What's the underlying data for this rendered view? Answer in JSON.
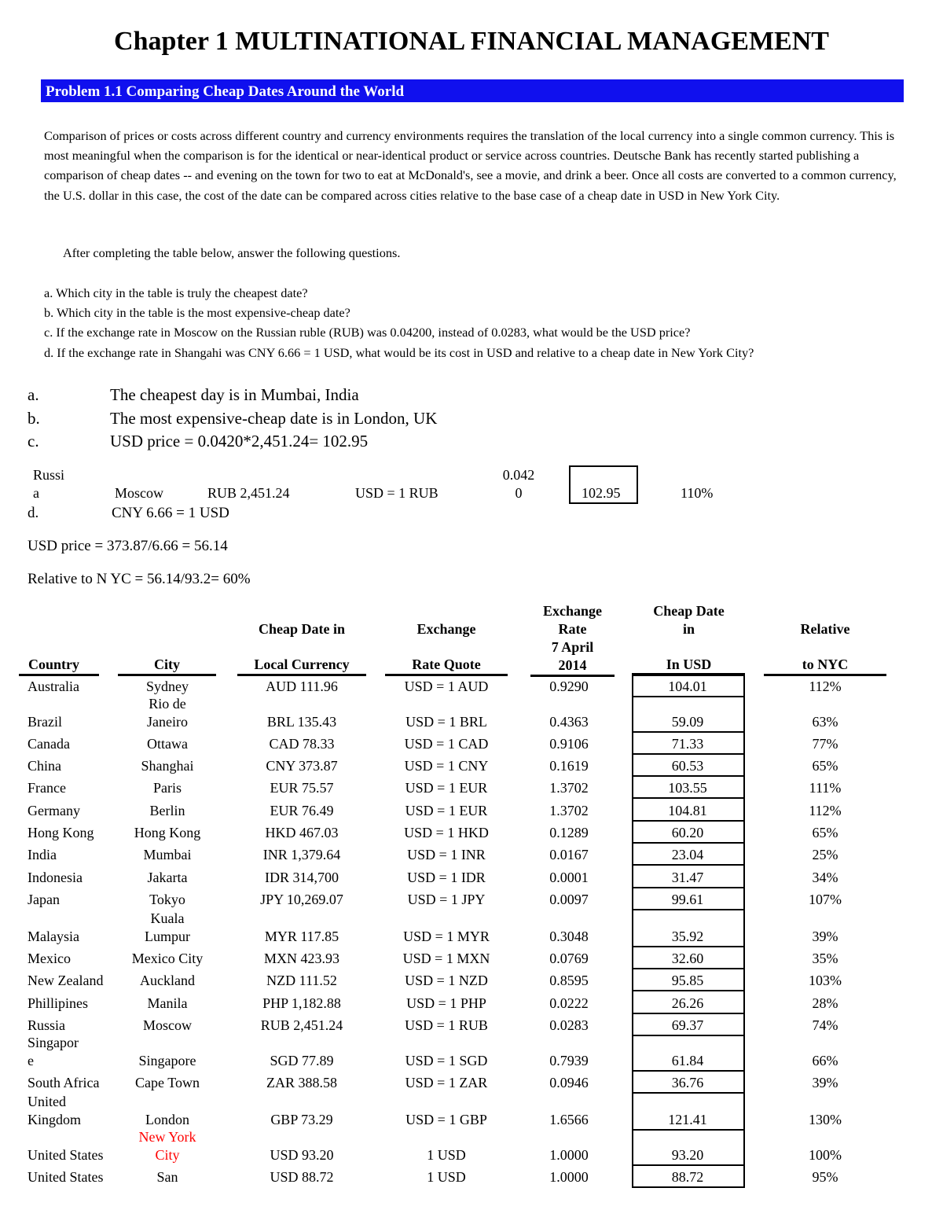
{
  "title": "Chapter 1 MULTINATIONAL FINANCIAL MANAGEMENT",
  "problem": "Problem 1.1  Comparing Cheap Dates Around the World",
  "intro": "Comparison of prices or costs across different country and currency environments requires the translation of the local currency into a single common currency. This is most meaningful when the comparison is for the identical or near-identical product or service across countries. Deutsche Bank has recently started publishing a comparison of cheap dates -- and evening on the town for two to eat at McDonald's, see a movie, and drink a beer. Once all costs are converted to a common currency, the U.S. dollar in this case, the cost of the date can be compared across cities relative to the base case of a cheap date in USD in New York City.",
  "after": "After completing the table below, answer the following questions.",
  "questions": [
    "a. Which city in the table is truly the cheapest date?",
    "b. Which city in the table is the most expensive-cheap date?",
    "c. If the exchange rate in Moscow on the Russian ruble (RUB) was 0.04200, instead of 0.0283, what would be the USD price?",
    "d. If the exchange rate in Shangahi was CNY 6.66 = 1 USD, what would be its cost in USD and relative to a cheap date in New York City?"
  ],
  "answers": {
    "a_label": "a.",
    "a": "The cheapest day is in Mumbai, India",
    "b_label": "b.",
    "b": "The most expensive-cheap date is in London, UK",
    "c_label": "c.",
    "c": "USD price = 0.0420*2,451.24= 102.95",
    "russia_country": "Russi\na",
    "russia_city": "Moscow",
    "russia_local": "RUB 2,451.24",
    "russia_quote": "USD = 1 RUB",
    "russia_rate": "0.042\n0",
    "russia_usd": "102.95",
    "russia_rel": "110%",
    "d_label": "d.",
    "d": "CNY 6.66 = 1 USD",
    "d_price": "USD price = 373.87/6.66 = 56.14",
    "d_relative": "Relative to N YC = 56.14/93.2= 60%"
  },
  "table": {
    "headers": {
      "country": "Country",
      "city": "City",
      "local_top": "Cheap Date in",
      "local": "Local Currency",
      "quote_top": "Exchange",
      "quote": "Rate Quote",
      "rate": "Exchange\nRate\n7 April\n2014",
      "usd_top": "Cheap Date\nin",
      "usd": "In USD",
      "rel_top": "Relative",
      "rel": "to NYC"
    },
    "rows": [
      {
        "country": "Australia",
        "city": "Sydney",
        "local": "AUD 111.96",
        "quote": "USD = 1 AUD",
        "rate": "0.9290",
        "usd": "104.01",
        "rel": "112%"
      },
      {
        "country": "Brazil",
        "city": "Rio de\nJaneiro",
        "local": "BRL 135.43",
        "quote": "USD = 1 BRL",
        "rate": "0.4363",
        "usd": "59.09",
        "rel": "63%"
      },
      {
        "country": "Canada",
        "city": "Ottawa",
        "local": "CAD 78.33",
        "quote": "USD = 1 CAD",
        "rate": "0.9106",
        "usd": "71.33",
        "rel": "77%"
      },
      {
        "country": "China",
        "city": "Shanghai",
        "local": "CNY 373.87",
        "quote": "USD = 1 CNY",
        "rate": "0.1619",
        "usd": "60.53",
        "rel": "65%"
      },
      {
        "country": "France",
        "city": "Paris",
        "local": "EUR 75.57",
        "quote": "USD = 1 EUR",
        "rate": "1.3702",
        "usd": "103.55",
        "rel": "111%"
      },
      {
        "country": "Germany",
        "city": "Berlin",
        "local": "EUR 76.49",
        "quote": "USD = 1 EUR",
        "rate": "1.3702",
        "usd": "104.81",
        "rel": "112%"
      },
      {
        "country": "Hong Kong",
        "city": "Hong Kong",
        "local": "HKD 467.03",
        "quote": "USD = 1 HKD",
        "rate": "0.1289",
        "usd": "60.20",
        "rel": "65%"
      },
      {
        "country": "India",
        "city": "Mumbai",
        "local": "INR 1,379.64",
        "quote": "USD = 1 INR",
        "rate": "0.0167",
        "usd": "23.04",
        "rel": "25%"
      },
      {
        "country": "Indonesia",
        "city": "Jakarta",
        "local": "IDR 314,700",
        "quote": "USD = 1 IDR",
        "rate": "0.0001",
        "usd": "31.47",
        "rel": "34%"
      },
      {
        "country": "Japan",
        "city": "Tokyo",
        "local": "JPY 10,269.07",
        "quote": "USD = 1 JPY",
        "rate": "0.0097",
        "usd": "99.61",
        "rel": "107%"
      },
      {
        "country": "Malaysia",
        "city": "Kuala\nLumpur",
        "local": "MYR 117.85",
        "quote": "USD = 1 MYR",
        "rate": "0.3048",
        "usd": "35.92",
        "rel": "39%"
      },
      {
        "country": "Mexico",
        "city": "Mexico City",
        "local": "MXN 423.93",
        "quote": "USD = 1 MXN",
        "rate": "0.0769",
        "usd": "32.60",
        "rel": "35%"
      },
      {
        "country": "New Zealand",
        "city": "Auckland",
        "local": "NZD 111.52",
        "quote": "USD = 1 NZD",
        "rate": "0.8595",
        "usd": "95.85",
        "rel": "103%"
      },
      {
        "country": "Phillipines",
        "city": "Manila",
        "local": "PHP 1,182.88",
        "quote": "USD = 1 PHP",
        "rate": "0.0222",
        "usd": "26.26",
        "rel": "28%"
      },
      {
        "country": "Russia",
        "city": "Moscow",
        "local": "RUB 2,451.24",
        "quote": "USD = 1 RUB",
        "rate": "0.0283",
        "usd": "69.37",
        "rel": "74%"
      },
      {
        "country": "Singapor\ne",
        "city": "Singapore",
        "local": "SGD 77.89",
        "quote": "USD = 1 SGD",
        "rate": "0.7939",
        "usd": "61.84",
        "rel": "66%"
      },
      {
        "country": "South Africa",
        "city": "Cape Town",
        "local": "ZAR 388.58",
        "quote": "USD = 1 ZAR",
        "rate": "0.0946",
        "usd": "36.76",
        "rel": "39%"
      },
      {
        "country": "United\nKingdom",
        "city": "London",
        "local": "GBP 73.29",
        "quote": "USD = 1 GBP",
        "rate": "1.6566",
        "usd": "121.41",
        "rel": "130%"
      },
      {
        "country": "United States",
        "city": "New York\nCity",
        "local": "USD 93.20",
        "quote": "1 USD",
        "rate": "1.0000",
        "usd": "93.20",
        "rel": "100%",
        "highlight": true
      },
      {
        "country": "United States",
        "city": "San",
        "local": "USD 88.72",
        "quote": "1 USD",
        "rate": "1.0000",
        "usd": "88.72",
        "rel": "95%"
      }
    ]
  },
  "colors": {
    "banner": "#1010ee",
    "highlight": "#ff0000"
  }
}
